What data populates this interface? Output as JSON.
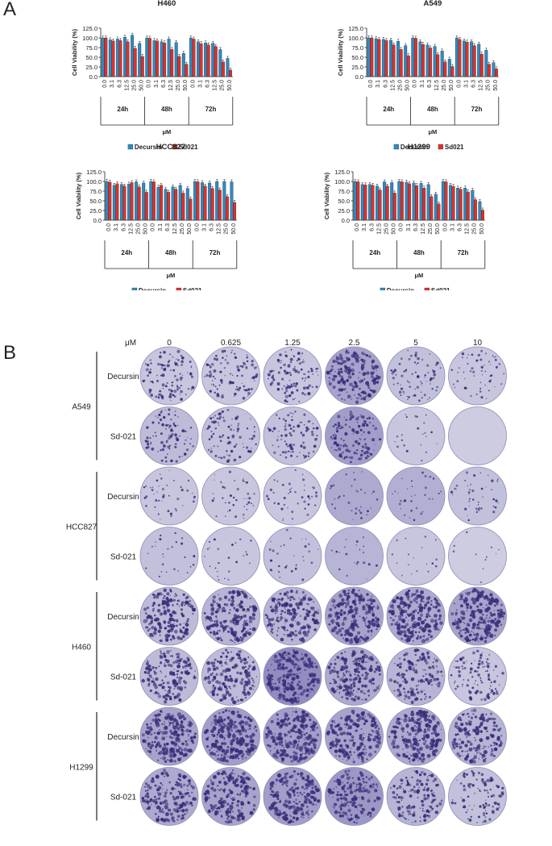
{
  "panel_a_label": "A",
  "panel_b_label": "B",
  "colors": {
    "decursin": "#2e8bc0",
    "sd021": "#e0302a",
    "well": "#c9c8de",
    "colony": "#3b2f7a"
  },
  "chart_data": [
    {
      "type": "bar",
      "title": "H460",
      "ylabel": "Cell Viability (%)",
      "xlabel": "μM",
      "ylim": [
        0,
        125
      ],
      "yticks": [
        "0.0",
        "25.0",
        "50.0",
        "75.0",
        "100.0",
        "125.0"
      ],
      "groups": [
        "24h",
        "48h",
        "72h"
      ],
      "categories": [
        "0.0",
        "3.1",
        "6.3",
        "12.5",
        "25.0",
        "50.0",
        "0.0",
        "3.1",
        "6.3",
        "12.5",
        "25.0",
        "50.0",
        "0.0",
        "3.1",
        "6.3",
        "12.5",
        "25.0",
        "50.0"
      ],
      "series": [
        {
          "name": "Decursin",
          "values": [
            100,
            95,
            97,
            102,
            107,
            86,
            100,
            93,
            90,
            97,
            88,
            60,
            100,
            90,
            87,
            86,
            70,
            47
          ]
        },
        {
          "name": "Sd021",
          "values": [
            100,
            92,
            93,
            90,
            73,
            52,
            99,
            92,
            87,
            70,
            52,
            32,
            97,
            85,
            82,
            78,
            38,
            17
          ]
        }
      ],
      "legend": "bottom"
    },
    {
      "type": "bar",
      "title": "A549",
      "ylabel": "Cell Viability (%)",
      "xlabel": "μM",
      "ylim": [
        0,
        125
      ],
      "yticks": [
        "0.0",
        "25.0",
        "50.0",
        "75.0",
        "100.0",
        "125.0"
      ],
      "groups": [
        "24h",
        "48h",
        "72h"
      ],
      "categories": [
        "0.0",
        "3.1",
        "6.3",
        "12.5",
        "25.0",
        "50.0",
        "0.0",
        "3.1",
        "6.3",
        "12.5",
        "25.0",
        "50.0",
        "0.0",
        "3.1",
        "6.3",
        "12.5",
        "25.0",
        "50.0"
      ],
      "series": [
        {
          "name": "Decursin",
          "values": [
            100,
            98,
            96,
            94,
            91,
            80,
            100,
            90,
            82,
            78,
            66,
            45,
            100,
            92,
            90,
            84,
            68,
            36
          ]
        },
        {
          "name": "Sd021",
          "values": [
            100,
            96,
            93,
            82,
            70,
            54,
            99,
            83,
            74,
            57,
            38,
            26,
            96,
            89,
            80,
            58,
            32,
            20
          ]
        }
      ],
      "legend": "bottom"
    },
    {
      "type": "bar",
      "title": "HCC827",
      "ylabel": "Cell Viability (%)",
      "xlabel": "μM",
      "ylim": [
        0,
        125
      ],
      "yticks": [
        "0.0",
        "25.0",
        "50.0",
        "75.0",
        "100.0",
        "125.0"
      ],
      "groups": [
        "24h",
        "48h",
        "72h"
      ],
      "categories": [
        "0.0",
        "3.1",
        "6.3",
        "12.5",
        "25.0",
        "50.0",
        "0.0",
        "3.1",
        "6.3",
        "12.5",
        "25.0",
        "50.0",
        "0.0",
        "3.1",
        "6.3",
        "12.5",
        "25.0",
        "50.0"
      ],
      "series": [
        {
          "name": "Decursin",
          "values": [
            100,
            90,
            92,
            93,
            99,
            96,
            100,
            85,
            80,
            86,
            90,
            82,
            100,
            97,
            96,
            100,
            100,
            99
          ]
        },
        {
          "name": "Sd021",
          "values": [
            98,
            94,
            88,
            97,
            86,
            72,
            99,
            90,
            72,
            80,
            70,
            55,
            99,
            88,
            82,
            78,
            61,
            46
          ]
        }
      ],
      "legend": "bottom"
    },
    {
      "type": "bar",
      "title": "H1299",
      "ylabel": "Cell Viability (%)",
      "xlabel": "μM",
      "ylim": [
        0,
        125
      ],
      "yticks": [
        "0.0",
        "25.0",
        "50.0",
        "75.0",
        "100.0",
        "125.0"
      ],
      "groups": [
        "24h",
        "48h",
        "72h"
      ],
      "categories": [
        "0.0",
        "3.1",
        "6.3",
        "12.5",
        "25.0",
        "50.0",
        "0.0",
        "3.1",
        "6.3",
        "12.5",
        "25.0",
        "50.0",
        "0.0",
        "3.1",
        "6.3",
        "12.5",
        "25.0",
        "50.0"
      ],
      "series": [
        {
          "name": "Decursin",
          "values": [
            100,
            92,
            92,
            88,
            99,
            97,
            100,
            98,
            96,
            95,
            92,
            67,
            100,
            90,
            83,
            83,
            77,
            48
          ]
        },
        {
          "name": "Sd021",
          "values": [
            99,
            91,
            90,
            78,
            88,
            70,
            99,
            94,
            89,
            83,
            61,
            42,
            99,
            87,
            80,
            73,
            53,
            26
          ]
        }
      ],
      "legend": "bottom"
    }
  ],
  "colony": {
    "conc_label": "μM",
    "concentrations": [
      "0",
      "0.625",
      "1.25",
      "2.5",
      "5",
      "10"
    ],
    "cell_lines": [
      {
        "name": "A549",
        "rows": [
          {
            "label": "Decursin",
            "density": [
              0.45,
              0.45,
              0.5,
              0.75,
              0.35,
              0.25
            ],
            "tint": [
              0.05,
              0.05,
              0.05,
              0.35,
              0.1,
              0.05
            ]
          },
          {
            "label": "Sd-021",
            "density": [
              0.4,
              0.4,
              0.4,
              0.55,
              0.1,
              0.0
            ],
            "tint": [
              0.15,
              0.1,
              0.1,
              0.4,
              0.05,
              0.0
            ]
          }
        ]
      },
      {
        "name": "HCC827",
        "rows": [
          {
            "label": "Decursin",
            "density": [
              0.2,
              0.2,
              0.2,
              0.15,
              0.15,
              0.2
            ],
            "tint": [
              0.05,
              0.05,
              0.05,
              0.3,
              0.25,
              0.1
            ]
          },
          {
            "label": "Sd-021",
            "density": [
              0.12,
              0.12,
              0.15,
              0.1,
              0.08,
              0.05
            ],
            "tint": [
              0.1,
              0.05,
              0.1,
              0.2,
              0.05,
              0.0
            ]
          }
        ]
      },
      {
        "name": "H460",
        "rows": [
          {
            "label": "Decursin",
            "density": [
              0.8,
              0.85,
              0.85,
              0.9,
              0.9,
              0.95
            ],
            "tint": [
              0.15,
              0.2,
              0.2,
              0.35,
              0.3,
              0.35
            ]
          },
          {
            "label": "Sd-021",
            "density": [
              0.75,
              0.75,
              0.9,
              0.8,
              0.65,
              0.45
            ],
            "tint": [
              0.15,
              0.15,
              0.55,
              0.3,
              0.2,
              0.05
            ]
          }
        ]
      },
      {
        "name": "H1299",
        "rows": [
          {
            "label": "Decursin",
            "density": [
              0.95,
              0.95,
              0.95,
              0.85,
              0.9,
              0.8
            ],
            "tint": [
              0.35,
              0.4,
              0.4,
              0.35,
              0.3,
              0.2
            ]
          },
          {
            "label": "Sd-021",
            "density": [
              0.8,
              0.85,
              0.85,
              0.75,
              0.6,
              0.45
            ],
            "tint": [
              0.3,
              0.35,
              0.4,
              0.45,
              0.2,
              0.1
            ]
          }
        ]
      }
    ]
  }
}
